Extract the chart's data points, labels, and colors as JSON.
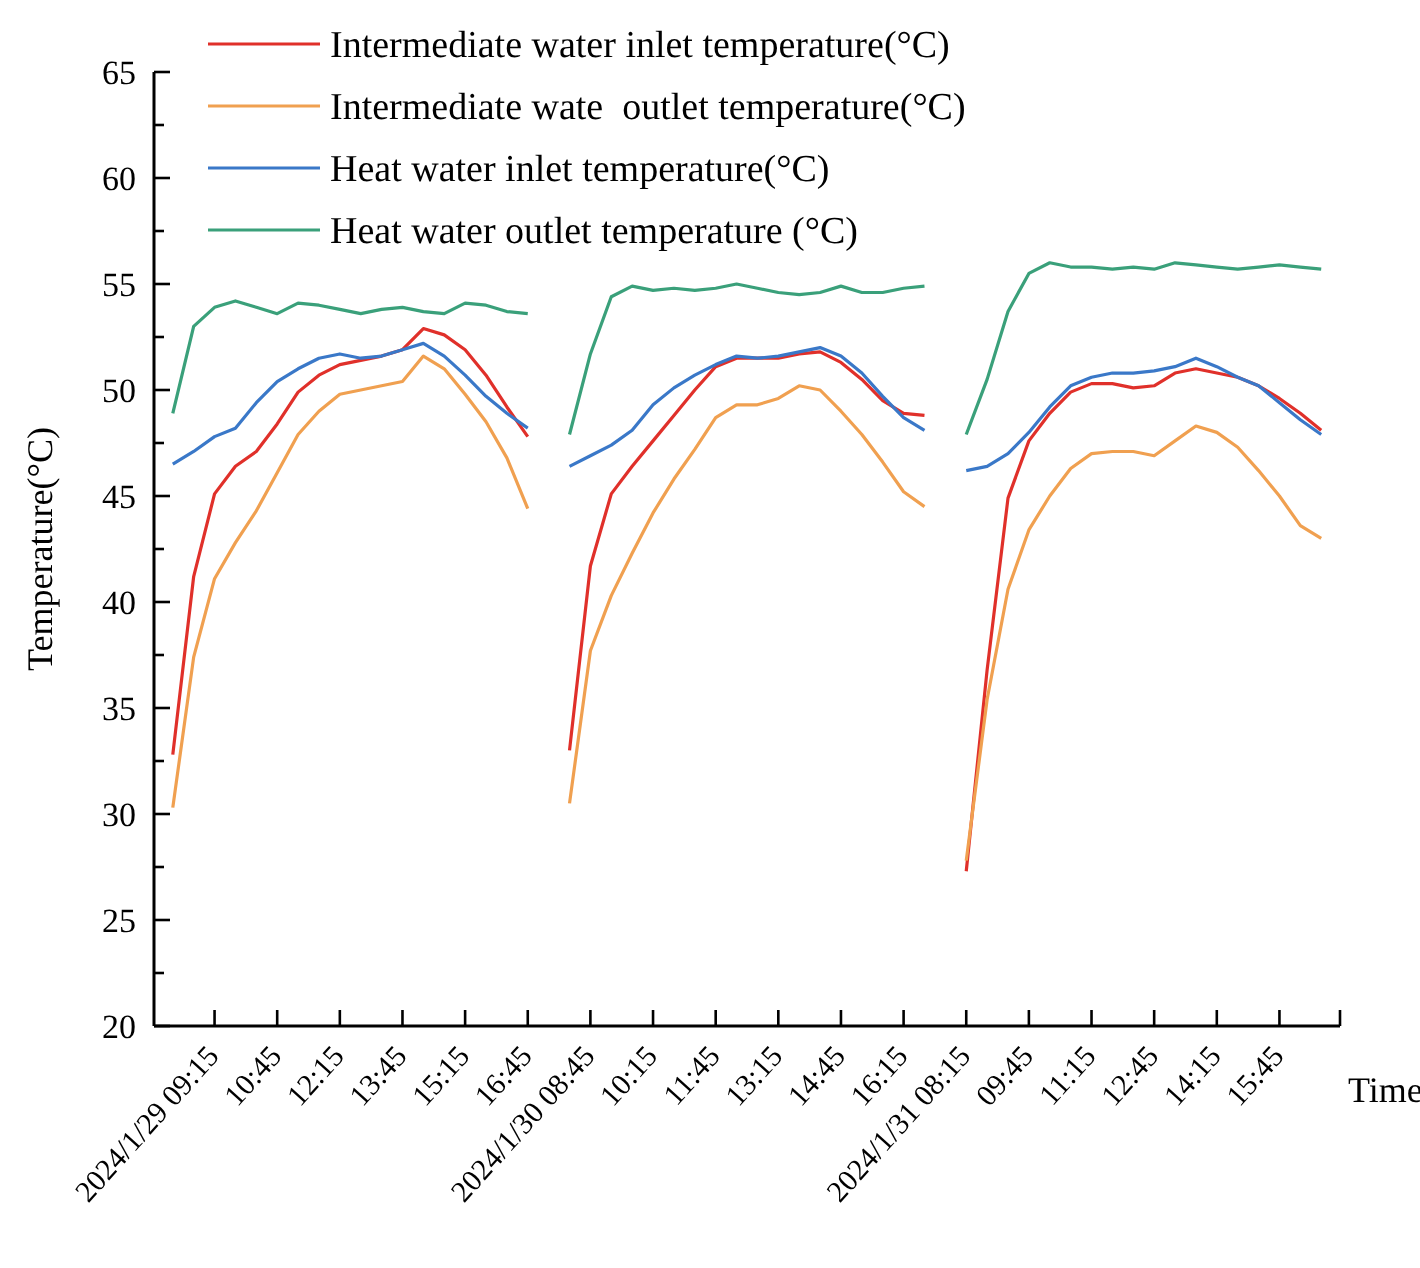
{
  "chart_data": {
    "type": "line",
    "xlabel": "Time",
    "ylabel": "Temperature(°C)",
    "categories": [
      null,
      null,
      "2024/1/29 09:15",
      null,
      null,
      "10:45",
      null,
      null,
      "12:15",
      null,
      null,
      "13:45",
      null,
      null,
      "15:15",
      null,
      null,
      "16:45",
      null,
      null,
      "2024/1/30 08:45",
      null,
      null,
      "10:15",
      null,
      null,
      "11:45",
      null,
      null,
      "13:15",
      null,
      null,
      "14:45",
      null,
      null,
      "16:15",
      null,
      null,
      "2024/1/31 08:15",
      null,
      null,
      "09:45",
      null,
      null,
      "11:15",
      null,
      null,
      "12:45",
      null,
      null,
      "14:15",
      null,
      null,
      "15:45",
      null,
      null
    ],
    "series": [
      {
        "name": "Intermediate water inlet temperature(°C)",
        "color": "#e0302a",
        "values": [
          32.8,
          41.2,
          45.1,
          46.4,
          47.1,
          48.4,
          49.9,
          50.7,
          51.2,
          51.4,
          51.6,
          51.9,
          52.9,
          52.6,
          51.9,
          50.7,
          49.2,
          47.8,
          null,
          33.0,
          41.7,
          45.1,
          46.4,
          47.6,
          48.8,
          50.0,
          51.1,
          51.5,
          51.5,
          51.5,
          51.7,
          51.8,
          51.3,
          50.5,
          49.5,
          48.9,
          48.8,
          null,
          27.3,
          36.8,
          44.9,
          47.6,
          48.9,
          49.9,
          50.3,
          50.3,
          50.1,
          50.2,
          50.8,
          51.0,
          50.8,
          50.6,
          50.2,
          49.6,
          48.9,
          48.1
        ]
      },
      {
        "name": "Intermediate wate  outlet temperature(°C)",
        "color": "#f0a050",
        "values": [
          30.3,
          37.4,
          41.1,
          42.8,
          44.3,
          46.1,
          47.9,
          49.0,
          49.8,
          50.0,
          50.2,
          50.4,
          51.6,
          51.0,
          49.8,
          48.5,
          46.8,
          44.4,
          null,
          30.5,
          37.7,
          40.3,
          42.3,
          44.2,
          45.8,
          47.2,
          48.7,
          49.3,
          49.3,
          49.6,
          50.2,
          50.0,
          49.0,
          47.9,
          46.6,
          45.2,
          44.5,
          null,
          27.8,
          35.4,
          40.6,
          43.4,
          45.0,
          46.3,
          47.0,
          47.1,
          47.1,
          46.9,
          47.6,
          48.3,
          48.0,
          47.3,
          46.2,
          45.0,
          43.6,
          43.0
        ]
      },
      {
        "name": "Heat water inlet temperature(°C)",
        "color": "#3a78c8",
        "values": [
          46.5,
          47.1,
          47.8,
          48.2,
          49.4,
          50.4,
          51.0,
          51.5,
          51.7,
          51.5,
          51.6,
          51.9,
          52.2,
          51.6,
          50.7,
          49.7,
          48.9,
          48.2,
          null,
          46.4,
          46.9,
          47.4,
          48.1,
          49.3,
          50.1,
          50.7,
          51.2,
          51.6,
          51.5,
          51.6,
          51.8,
          52.0,
          51.6,
          50.8,
          49.7,
          48.7,
          48.1,
          null,
          46.2,
          46.4,
          47.0,
          48.0,
          49.2,
          50.2,
          50.6,
          50.8,
          50.8,
          50.9,
          51.1,
          51.5,
          51.1,
          50.6,
          50.2,
          49.4,
          48.6,
          47.9
        ]
      },
      {
        "name": "Heat water outlet temperature (°C)",
        "color": "#3aa07a",
        "values": [
          48.9,
          53.0,
          53.9,
          54.2,
          53.9,
          53.6,
          54.1,
          54.0,
          53.8,
          53.6,
          53.8,
          53.9,
          53.7,
          53.6,
          54.1,
          54.0,
          53.7,
          53.6,
          null,
          47.9,
          51.7,
          54.4,
          54.9,
          54.7,
          54.8,
          54.7,
          54.8,
          55.0,
          54.8,
          54.6,
          54.5,
          54.6,
          54.9,
          54.6,
          54.6,
          54.8,
          54.9,
          null,
          47.9,
          50.5,
          53.7,
          55.5,
          56.0,
          55.8,
          55.8,
          55.7,
          55.8,
          55.7,
          56.0,
          55.9,
          55.8,
          55.7,
          55.8,
          55.9,
          55.8,
          55.7
        ]
      }
    ],
    "ylim": [
      20,
      65
    ],
    "yticks": [
      20,
      {
        "value": 22.5,
        "label": null
      },
      25,
      {
        "value": 27.5,
        "label": null
      },
      30,
      {
        "value": 32.5,
        "label": null
      },
      35,
      {
        "value": 37.5,
        "label": null
      },
      40,
      {
        "value": 42.5,
        "label": null
      },
      45,
      {
        "value": 47.5,
        "label": null
      },
      50,
      {
        "value": 52.5,
        "label": null
      },
      55,
      {
        "value": 57.5,
        "label": null
      },
      60,
      {
        "value": 62.5,
        "label": null
      },
      65
    ],
    "grid": false,
    "legend": "top left",
    "marker": "none",
    "line_style": "solid"
  }
}
